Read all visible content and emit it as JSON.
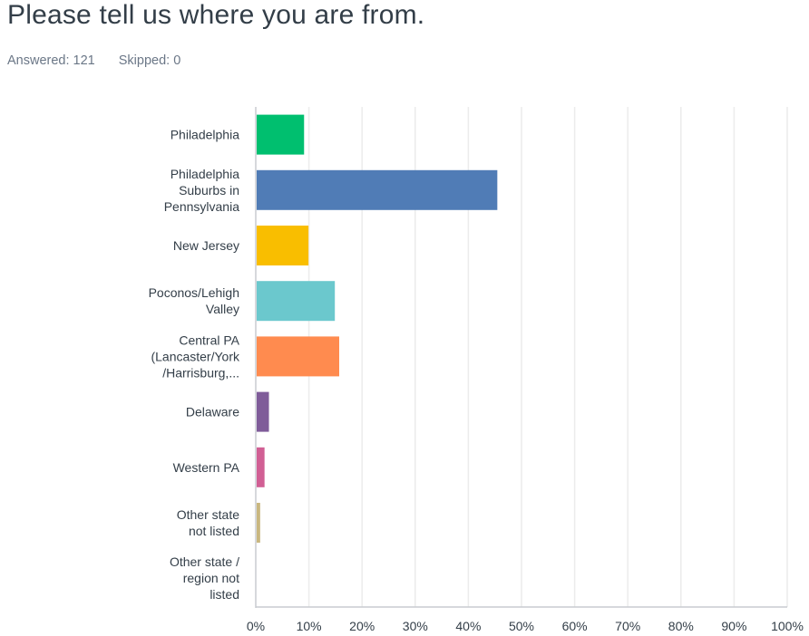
{
  "question": {
    "title": "Please tell us where you are from.",
    "answered": "Answered: 121",
    "skipped": "Skipped: 0"
  },
  "chart_data": {
    "type": "bar",
    "orientation": "horizontal",
    "categories": [
      [
        "Philadelphia"
      ],
      [
        "Philadelphia",
        "Suburbs in",
        "Pennsylvania"
      ],
      [
        "New Jersey"
      ],
      [
        "Poconos/Lehigh",
        "Valley"
      ],
      [
        "Central PA",
        "(Lancaster/York",
        "/Harrisburg,..."
      ],
      [
        "Delaware"
      ],
      [
        "Western PA"
      ],
      [
        "Other state",
        "not listed"
      ],
      [
        "Other state /",
        "region not",
        "listed"
      ]
    ],
    "values": [
      9.09,
      45.45,
      9.92,
      14.88,
      15.7,
      2.48,
      1.65,
      0.83,
      0.0
    ],
    "colors": [
      "#00bf6f",
      "#507cb6",
      "#f9be00",
      "#6bc8cd",
      "#ff8b4f",
      "#7f5c99",
      "#d15f94",
      "#c9b77f",
      "#9e9e9e"
    ],
    "xlim": [
      0,
      100
    ],
    "xticks": [
      "0%",
      "10%",
      "20%",
      "30%",
      "40%",
      "50%",
      "60%",
      "70%",
      "80%",
      "90%",
      "100%"
    ],
    "grid": true,
    "title": "",
    "xlabel": "",
    "ylabel": ""
  }
}
